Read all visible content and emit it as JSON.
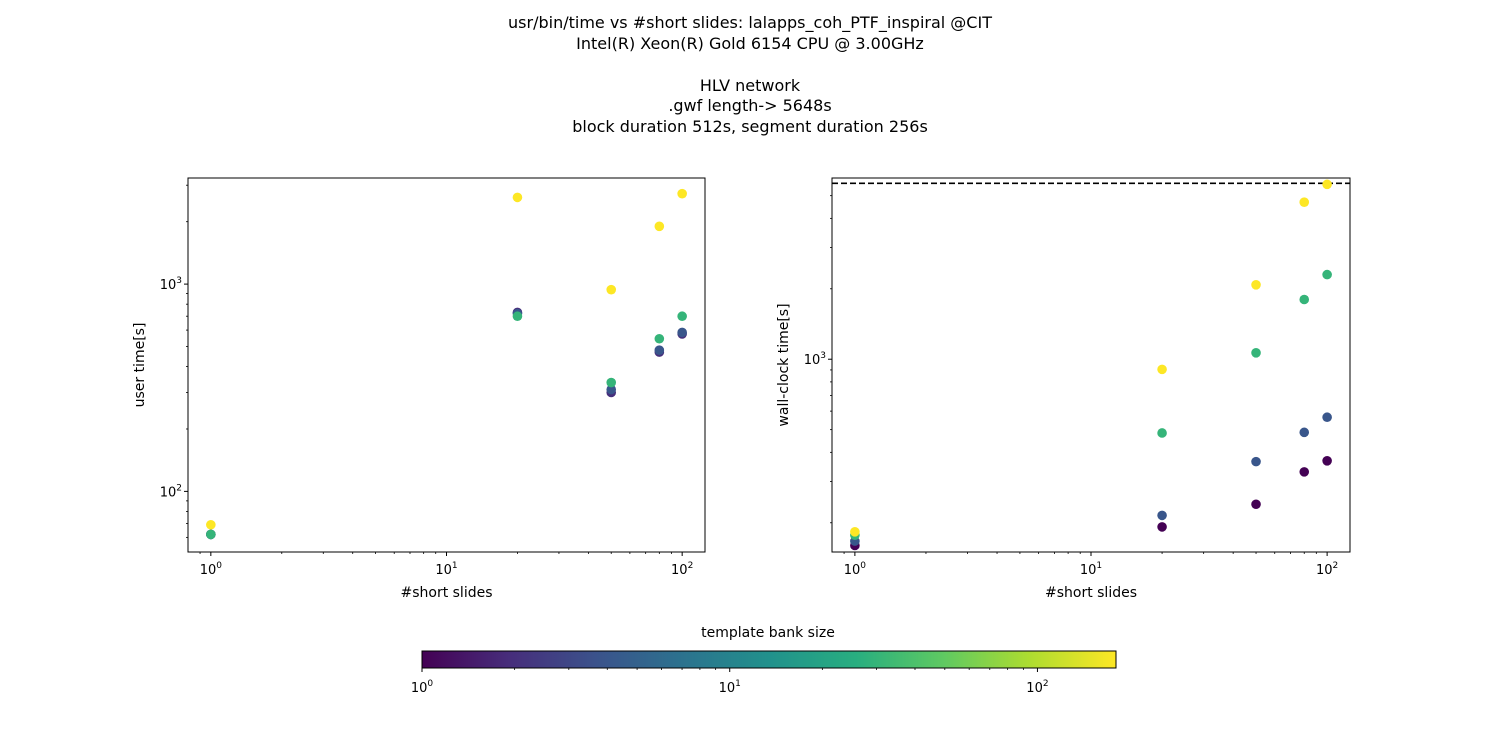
{
  "figure": {
    "title_lines": [
      "usr/bin/time vs #short slides: lalapps_coh_PTF_inspiral @CIT",
      "Intel(R) Xeon(R) Gold 6154 CPU @ 3.00GHz",
      "",
      "HLV network",
      ".gwf length-> 5648s",
      "block duration 512s, segment duration 256s"
    ]
  },
  "colorbar": {
    "label": "template bank size",
    "scale": "log",
    "range": [
      1,
      180
    ],
    "colormap": "viridis",
    "ticks": [
      {
        "base": "10",
        "exp": "0"
      },
      {
        "base": "10",
        "exp": "1"
      },
      {
        "base": "10",
        "exp": "2"
      }
    ]
  },
  "chart_data": [
    {
      "type": "scatter",
      "xlabel": "#short slides",
      "ylabel": "user time[s]",
      "xscale": "log",
      "yscale": "log",
      "xlim": [
        0.8,
        125
      ],
      "ylim": [
        51,
        3250
      ],
      "grid": false,
      "xticks": [
        {
          "base": "10",
          "exp": "0"
        },
        {
          "base": "10",
          "exp": "1"
        },
        {
          "base": "10",
          "exp": "2"
        }
      ],
      "yticks": [
        {
          "base": "10",
          "exp": "2"
        },
        {
          "base": "10",
          "exp": "3"
        }
      ],
      "points": [
        {
          "x": 1,
          "y": 62,
          "bank": 1
        },
        {
          "x": 1,
          "y": 62,
          "bank": 4
        },
        {
          "x": 1,
          "y": 62,
          "bank": 30
        },
        {
          "x": 1,
          "y": 69,
          "bank": 180
        },
        {
          "x": 20,
          "y": 730,
          "bank": 2
        },
        {
          "x": 20,
          "y": 720,
          "bank": 4
        },
        {
          "x": 20,
          "y": 700,
          "bank": 30
        },
        {
          "x": 20,
          "y": 2620,
          "bank": 180
        },
        {
          "x": 50,
          "y": 300,
          "bank": 2
        },
        {
          "x": 50,
          "y": 310,
          "bank": 4
        },
        {
          "x": 50,
          "y": 335,
          "bank": 30
        },
        {
          "x": 50,
          "y": 940,
          "bank": 180
        },
        {
          "x": 80,
          "y": 470,
          "bank": 2
        },
        {
          "x": 80,
          "y": 480,
          "bank": 4
        },
        {
          "x": 80,
          "y": 545,
          "bank": 30
        },
        {
          "x": 80,
          "y": 1900,
          "bank": 180
        },
        {
          "x": 100,
          "y": 575,
          "bank": 2
        },
        {
          "x": 100,
          "y": 585,
          "bank": 4
        },
        {
          "x": 100,
          "y": 700,
          "bank": 30
        },
        {
          "x": 100,
          "y": 2730,
          "bank": 180
        }
      ]
    },
    {
      "type": "scatter",
      "xlabel": "#short slides",
      "ylabel": "wall-clock time[s]",
      "xscale": "log",
      "yscale": "log",
      "xlim": [
        0.8,
        125
      ],
      "ylim": [
        150,
        5950
      ],
      "grid": false,
      "hline": {
        "y": 5648,
        "style": "dashed",
        "color": "#000000"
      },
      "xticks": [
        {
          "base": "10",
          "exp": "0"
        },
        {
          "base": "10",
          "exp": "1"
        },
        {
          "base": "10",
          "exp": "2"
        }
      ],
      "yticks": [
        {
          "base": "10",
          "exp": "3"
        }
      ],
      "points": [
        {
          "x": 1,
          "y": 160,
          "bank": 1
        },
        {
          "x": 1,
          "y": 167,
          "bank": 4
        },
        {
          "x": 1,
          "y": 177,
          "bank": 30
        },
        {
          "x": 1,
          "y": 183,
          "bank": 180
        },
        {
          "x": 20,
          "y": 192,
          "bank": 1
        },
        {
          "x": 20,
          "y": 215,
          "bank": 4
        },
        {
          "x": 20,
          "y": 484,
          "bank": 30
        },
        {
          "x": 20,
          "y": 905,
          "bank": 180
        },
        {
          "x": 50,
          "y": 240,
          "bank": 1
        },
        {
          "x": 50,
          "y": 365,
          "bank": 4
        },
        {
          "x": 50,
          "y": 1065,
          "bank": 30
        },
        {
          "x": 50,
          "y": 2080,
          "bank": 180
        },
        {
          "x": 80,
          "y": 330,
          "bank": 1
        },
        {
          "x": 80,
          "y": 487,
          "bank": 4
        },
        {
          "x": 80,
          "y": 1800,
          "bank": 30
        },
        {
          "x": 80,
          "y": 4690,
          "bank": 180
        },
        {
          "x": 100,
          "y": 368,
          "bank": 1
        },
        {
          "x": 100,
          "y": 565,
          "bank": 4
        },
        {
          "x": 100,
          "y": 2300,
          "bank": 30
        },
        {
          "x": 100,
          "y": 5590,
          "bank": 180
        }
      ]
    }
  ]
}
